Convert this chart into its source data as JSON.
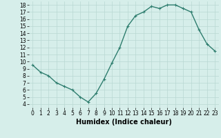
{
  "x": [
    0,
    1,
    2,
    3,
    4,
    5,
    6,
    7,
    8,
    9,
    10,
    11,
    12,
    13,
    14,
    15,
    16,
    17,
    18,
    19,
    20,
    21,
    22,
    23
  ],
  "y": [
    9.5,
    8.5,
    8.0,
    7.0,
    6.5,
    6.0,
    5.0,
    4.3,
    5.5,
    7.5,
    9.8,
    12.0,
    15.0,
    16.5,
    17.0,
    17.8,
    17.5,
    18.0,
    18.0,
    17.5,
    17.0,
    14.5,
    12.5,
    11.5
  ],
  "line_color": "#2e7d6e",
  "marker": "+",
  "marker_size": 3,
  "linewidth": 1.0,
  "xlabel": "Humidex (Indice chaleur)",
  "xlabel_fontsize": 7,
  "xlim": [
    -0.5,
    23.5
  ],
  "ylim": [
    3.5,
    18.5
  ],
  "xticks": [
    0,
    1,
    2,
    3,
    4,
    5,
    6,
    7,
    8,
    9,
    10,
    11,
    12,
    13,
    14,
    15,
    16,
    17,
    18,
    19,
    20,
    21,
    22,
    23
  ],
  "yticks": [
    4,
    5,
    6,
    7,
    8,
    9,
    10,
    11,
    12,
    13,
    14,
    15,
    16,
    17,
    18
  ],
  "tick_fontsize": 5.5,
  "background_color": "#d6eeea",
  "grid_color": "#b8d8d3",
  "grid_linewidth": 0.5
}
